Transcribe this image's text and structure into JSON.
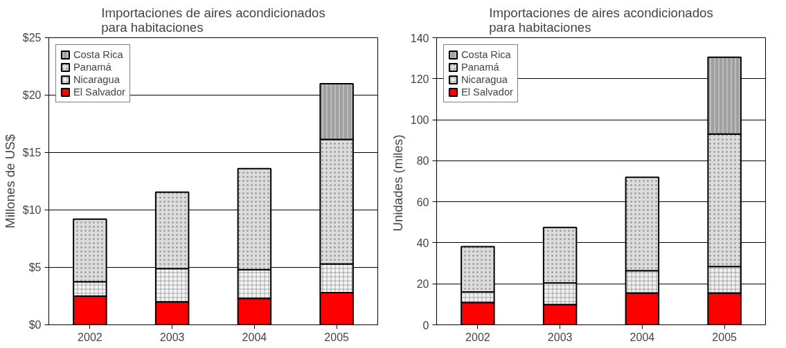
{
  "chart_data": [
    {
      "type": "bar",
      "stacked": true,
      "title": "Importaciones de aires acondicionados\npara habitaciones",
      "ylabel": "Millones de US$",
      "categories": [
        "2002",
        "2003",
        "2004",
        "2005"
      ],
      "series": [
        {
          "name": "El Salvador",
          "color": "#ff0000",
          "values": [
            2.5,
            2.0,
            2.3,
            2.8
          ]
        },
        {
          "name": "Nicaragua",
          "color": "#f4f4f4",
          "values": [
            1.25,
            2.9,
            2.5,
            2.5
          ]
        },
        {
          "name": "Panamá",
          "color": "#dcdcdc",
          "values": [
            5.45,
            6.65,
            8.8,
            10.85
          ]
        },
        {
          "name": "Costa Rica",
          "color": "#a0a0a0",
          "values": [
            null,
            null,
            null,
            4.85
          ]
        }
      ],
      "ylim": [
        0,
        25
      ],
      "yticks": [
        {
          "value": 0,
          "label": "$0"
        },
        {
          "value": 5,
          "label": "$5"
        },
        {
          "value": 10,
          "label": "$10"
        },
        {
          "value": 15,
          "label": "$15"
        },
        {
          "value": 20,
          "label": "$20"
        },
        {
          "value": 25,
          "label": "$25"
        }
      ],
      "grid": "y",
      "legend": "top left"
    },
    {
      "type": "bar",
      "stacked": true,
      "title": "Importaciones de aires acondicionados\npara habitaciones",
      "ylabel": "Unidades  (miles)",
      "categories": [
        "2002",
        "2003",
        "2004",
        "2005"
      ],
      "series": [
        {
          "name": "El Salvador",
          "color": "#ff0000",
          "values": [
            10.9,
            9.9,
            15.5,
            15.5
          ]
        },
        {
          "name": "Nicaragua",
          "color": "#f0f0f0",
          "values": [
            5.1,
            10.5,
            10.9,
            12.9
          ]
        },
        {
          "name": "Panamá",
          "color": "#dcdcdc",
          "values": [
            22.1,
            27.1,
            45.5,
            64.6
          ]
        },
        {
          "name": "Costa Rica",
          "color": "#a0a0a0",
          "values": [
            null,
            null,
            null,
            37.5
          ]
        }
      ],
      "ylim": [
        0,
        140
      ],
      "yticks": [
        0,
        20,
        40,
        60,
        80,
        100,
        120,
        140
      ],
      "grid": "y",
      "legend": "top left"
    }
  ]
}
